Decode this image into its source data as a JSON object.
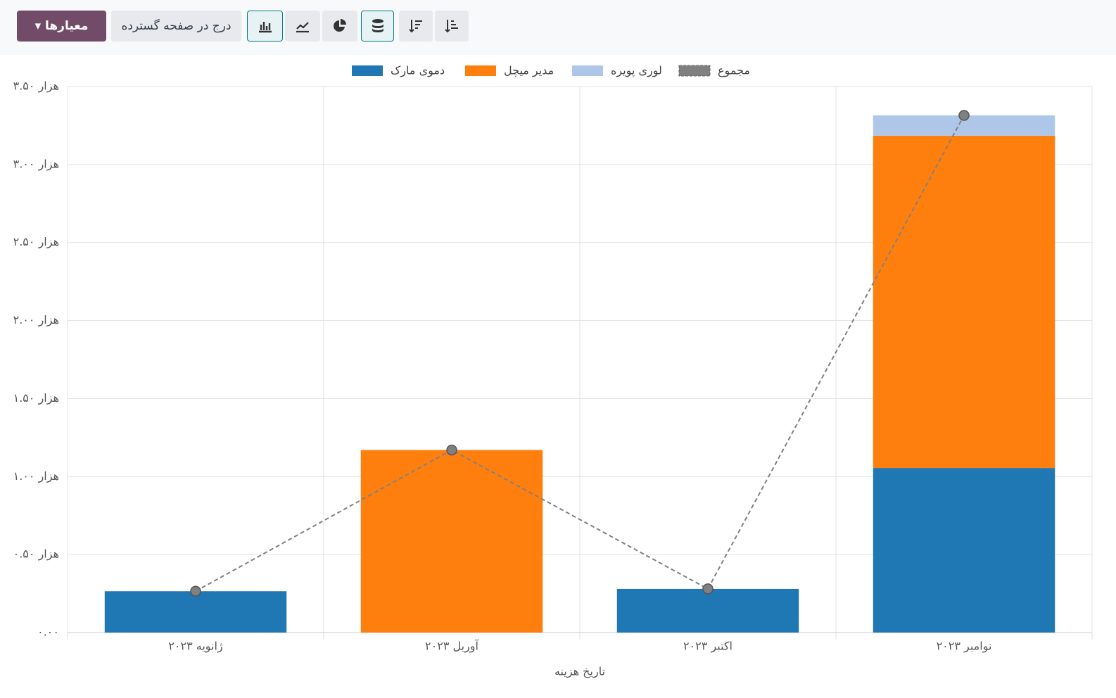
{
  "toolbar": {
    "filter_button": "معیارها",
    "insert_button": "درج در صفحه گسترده"
  },
  "chart_data": {
    "type": "bar",
    "stacked": true,
    "categories": [
      "ژانویه ۲۰۲۳",
      "آوریل ۲۰۲۳",
      "اکتبر ۲۰۲۳",
      "نوامبر ۲۰۲۳"
    ],
    "x_label": "تاریخ هزینه",
    "series": [
      {
        "name": "دموی مارک",
        "color": "#1f77b4",
        "values": [
          265,
          null,
          280,
          1055
        ]
      },
      {
        "name": "مدیر میچل",
        "color": "#ff7f0e",
        "values": [
          null,
          1170,
          null,
          2130
        ]
      },
      {
        "name": "لوری پویره",
        "color": "#aec7e8",
        "values": [
          null,
          null,
          null,
          130
        ]
      },
      {
        "name": "مجموع",
        "color": "#808080",
        "type": "line",
        "values": [
          265,
          1170,
          280,
          3315
        ]
      }
    ],
    "ylim": [
      0,
      3500
    ],
    "yticks": [
      {
        "value": 0,
        "label": "۰.۰۰"
      },
      {
        "value": 500,
        "label": "۰.۵۰ هزار"
      },
      {
        "value": 1000,
        "label": "۱.۰۰ هزار"
      },
      {
        "value": 1500,
        "label": "۱.۵۰ هزار"
      },
      {
        "value": 2000,
        "label": "۲.۰۰ هزار"
      },
      {
        "value": 2500,
        "label": "۲.۵۰ هزار"
      },
      {
        "value": 3000,
        "label": "۳.۰۰ هزار"
      },
      {
        "value": 3500,
        "label": "۳.۵۰ هزار"
      }
    ],
    "grid": true,
    "legend": "top"
  }
}
